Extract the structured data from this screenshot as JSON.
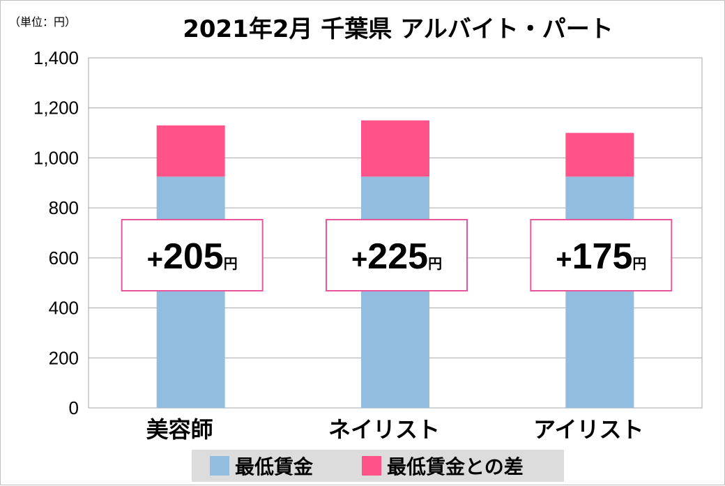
{
  "chart_data": {
    "type": "bar",
    "stacked": true,
    "title": "2021年2月 千葉県 アルバイト・パート",
    "unit_label": "（単位：円）",
    "categories": [
      "美容師",
      "ネイリスト",
      "アイリスト"
    ],
    "series": [
      {
        "name": "最低賃金",
        "values": [
          925,
          925,
          925
        ],
        "color": "#92bddf"
      },
      {
        "name": "最低賃金との差",
        "values": [
          205,
          225,
          175
        ],
        "color": "#ff538a"
      }
    ],
    "badges": [
      {
        "plus": "+",
        "value": "205",
        "unit": "円"
      },
      {
        "plus": "+",
        "value": "225",
        "unit": "円"
      },
      {
        "plus": "+",
        "value": "175",
        "unit": "円"
      }
    ],
    "badge_border_color": "#e8559b",
    "yticks": [
      "0",
      "200",
      "400",
      "600",
      "800",
      "1,000",
      "1,200",
      "1,400"
    ],
    "ylim": [
      0,
      1400
    ],
    "grid": true,
    "legend_position": "bottom"
  }
}
